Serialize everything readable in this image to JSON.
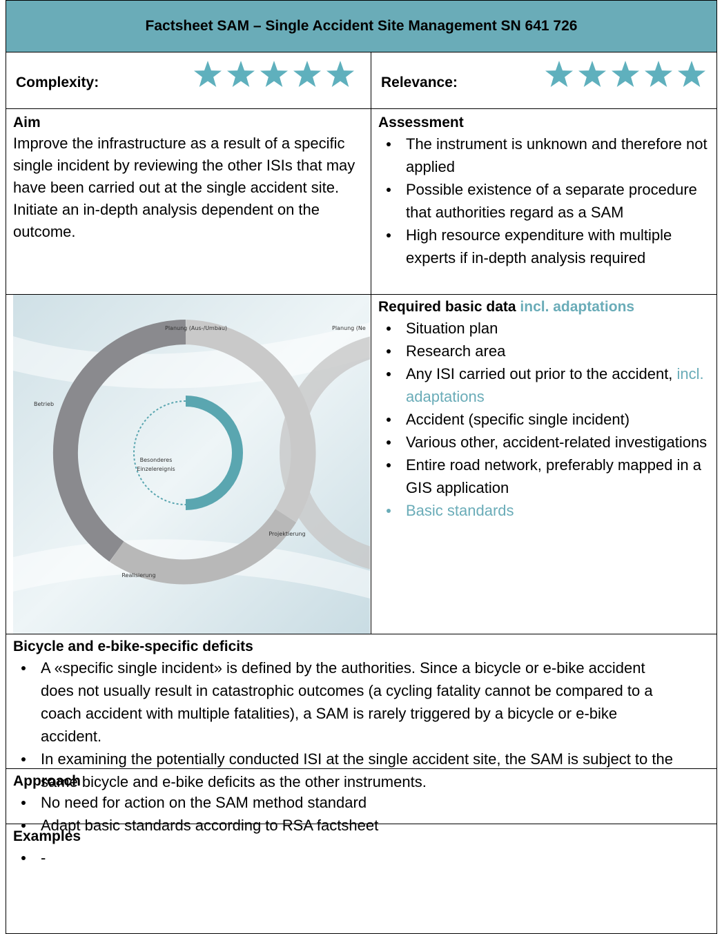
{
  "header": {
    "title": "Factsheet SAM – Single Accident Site Management SN 641 726"
  },
  "ratings": {
    "complexity": {
      "label": "Complexity:",
      "stars": 5
    },
    "relevance": {
      "label": "Relevance:",
      "stars": 5
    }
  },
  "aim": {
    "title": "Aim",
    "text": "Improve the infrastructure as a result of a specific single incident by reviewing the other ISIs that may have been carried out at the single accident site. Initiate an in-depth analysis dependent on the outcome."
  },
  "assessment": {
    "title": "Assessment",
    "items": [
      "The instrument is unknown and therefore not applied",
      "Possible existence of a separate procedure that authorities regard as a SAM",
      "High resource expenditure with multiple experts if in-depth analysis required"
    ]
  },
  "figure": {
    "labels": [
      "Planung (Aus-/Umbau)",
      "Planung (Ne",
      "Betrieb",
      "Besonderes",
      "Einzelereignis",
      "Projektierung",
      "Realisierung"
    ]
  },
  "required_data": {
    "title": "Required basic data",
    "title_accent": "incl. adaptations",
    "items": [
      {
        "text": "Situation plan"
      },
      {
        "text": "Research area"
      },
      {
        "text": "Any ISI carried out prior to the accident,",
        "accent": "incl. adaptations"
      },
      {
        "text": "Accident (specific single incident)"
      },
      {
        "text": "Various other, accident-related investigations"
      },
      {
        "text": "Entire road network, preferably mapped in a GIS application"
      },
      {
        "accent": "Basic standards"
      }
    ]
  },
  "deficits": {
    "title": "Bicycle and e-bike-specific deficits",
    "items": [
      "A «specific single incident» is defined by the authorities. Since a bicycle or e-bike accident does not usually result in catastrophic outcomes (a cycling fatality cannot be compared to a coach accident with multiple fatalities), a SAM is rarely triggered by a bicycle or e-bike accident.",
      "In examining the potentially conducted ISI at the single accident site, the SAM is subject to the same bicycle and e-bike deficits as the other instruments."
    ]
  },
  "approach": {
    "title": "Approach",
    "items": [
      "No need for action on the SAM method standard",
      "Adapt basic standards according to RSA factsheet"
    ]
  },
  "examples": {
    "title": "Examples",
    "items": [
      "-"
    ]
  }
}
